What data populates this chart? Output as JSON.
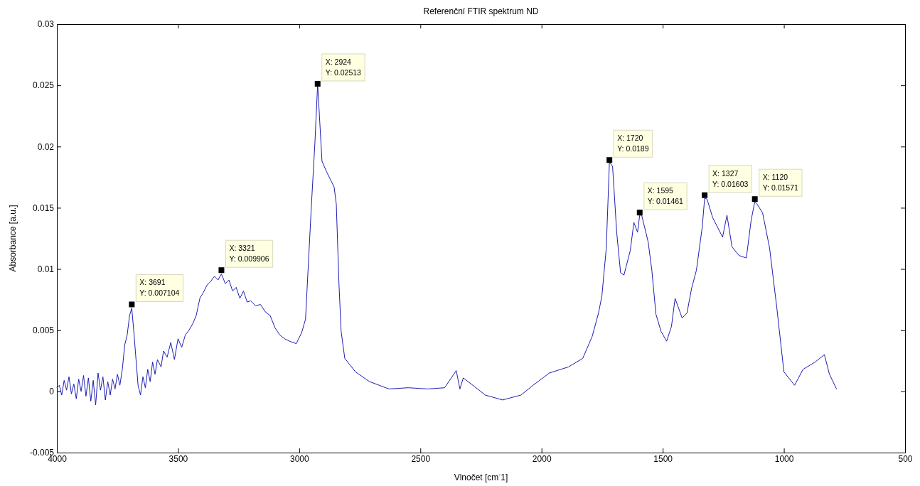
{
  "chart_data": {
    "type": "line",
    "title": "Referenční FTIR spektrum ND",
    "xlabel": "Vlnočet [cm$^{-}$1]",
    "ylabel": "Absorbance [a.u.]",
    "xlim": [
      4000,
      500
    ],
    "xticks": [
      4000,
      3500,
      3000,
      2500,
      2000,
      1500,
      1000,
      500
    ],
    "ylim": [
      -0.005,
      0.03
    ],
    "yticks": [
      -0.005,
      0,
      0.005,
      0.01,
      0.015,
      0.02,
      0.025,
      0.03
    ],
    "marker": "none",
    "line_style": "solid",
    "series": [
      {
        "color": "#1c1cb4",
        "x": [
          4000,
          3990,
          3980,
          3970,
          3960,
          3950,
          3940,
          3930,
          3920,
          3910,
          3900,
          3890,
          3880,
          3870,
          3860,
          3850,
          3840,
          3830,
          3820,
          3810,
          3800,
          3790,
          3780,
          3770,
          3760,
          3750,
          3740,
          3730,
          3720,
          3710,
          3700,
          3691,
          3683,
          3675,
          3665,
          3655,
          3645,
          3635,
          3625,
          3615,
          3605,
          3595,
          3585,
          3570,
          3560,
          3545,
          3530,
          3515,
          3500,
          3485,
          3470,
          3455,
          3440,
          3425,
          3410,
          3395,
          3380,
          3365,
          3350,
          3335,
          3321,
          3305,
          3290,
          3275,
          3260,
          3245,
          3230,
          3215,
          3200,
          3180,
          3160,
          3140,
          3120,
          3100,
          3080,
          3060,
          3040,
          3012,
          2990,
          2974,
          2950,
          2935,
          2924,
          2906,
          2886,
          2856,
          2847,
          2836,
          2827,
          2812,
          2768,
          2710,
          2630,
          2550,
          2470,
          2400,
          2352,
          2337,
          2323,
          2290,
          2232,
          2161,
          2085,
          2035,
          1968,
          1889,
          1830,
          1791,
          1765,
          1751,
          1733,
          1720,
          1707,
          1690,
          1674,
          1660,
          1634,
          1619,
          1604,
          1595,
          1587,
          1560,
          1545,
          1528,
          1507,
          1484,
          1464,
          1449,
          1420,
          1400,
          1381,
          1361,
          1337,
          1327,
          1317,
          1294,
          1253,
          1235,
          1214,
          1185,
          1155,
          1135,
          1120,
          1111,
          1088,
          1059,
          1029,
          1000,
          956,
          921,
          871,
          833,
          812,
          783
        ],
        "values": [
          0.0003,
          0.0005,
          -0.0003,
          0.0009,
          0.0001,
          0.0012,
          -0.0002,
          0.0006,
          -0.0006,
          0.001,
          0.0,
          0.0013,
          -0.0004,
          0.0011,
          -0.0008,
          0.0009,
          -0.0011,
          0.0015,
          0.0001,
          0.0012,
          -0.0007,
          0.0008,
          -0.0003,
          0.001,
          0.0002,
          0.0014,
          0.0005,
          0.0018,
          0.0038,
          0.0046,
          0.0062,
          0.0068,
          0.005,
          0.003,
          0.0005,
          -0.0003,
          0.0012,
          0.0003,
          0.0018,
          0.0008,
          0.0024,
          0.0014,
          0.0026,
          0.002,
          0.0033,
          0.0028,
          0.004,
          0.0026,
          0.0043,
          0.0036,
          0.0046,
          0.005,
          0.0055,
          0.0062,
          0.0076,
          0.0081,
          0.0087,
          0.009,
          0.0094,
          0.0091,
          0.0096,
          0.0088,
          0.0091,
          0.0082,
          0.0085,
          0.0076,
          0.0082,
          0.0073,
          0.0074,
          0.007,
          0.0071,
          0.0065,
          0.0062,
          0.0052,
          0.0046,
          0.0043,
          0.0041,
          0.0039,
          0.0048,
          0.0059,
          0.0151,
          0.0204,
          0.0251,
          0.0188,
          0.0179,
          0.0167,
          0.0153,
          0.0088,
          0.0049,
          0.0027,
          0.0016,
          0.0008,
          0.0002,
          0.0003,
          0.0002,
          0.0003,
          0.0017,
          0.0002,
          0.0011,
          0.0006,
          -0.0003,
          -0.0007,
          -0.0003,
          0.0005,
          0.0015,
          0.002,
          0.0027,
          0.0045,
          0.0064,
          0.0078,
          0.0117,
          0.0187,
          0.0184,
          0.013,
          0.0097,
          0.0095,
          0.0115,
          0.0138,
          0.013,
          0.0144,
          0.0144,
          0.0122,
          0.0099,
          0.0063,
          0.0049,
          0.0041,
          0.0053,
          0.0076,
          0.006,
          0.0064,
          0.0084,
          0.0099,
          0.0134,
          0.0158,
          0.0157,
          0.0142,
          0.0126,
          0.0144,
          0.0118,
          0.0111,
          0.0109,
          0.014,
          0.0155,
          0.0153,
          0.0146,
          0.0117,
          0.0068,
          0.0016,
          0.0005,
          0.0018,
          0.0024,
          0.003,
          0.0014,
          0.0002
        ]
      }
    ],
    "annotations": [
      {
        "text": "X: 3691\nY: 0.007104",
        "x": 3691,
        "y": 0.007104
      },
      {
        "text": "X: 3321\nY: 0.009906",
        "x": 3321,
        "y": 0.009906
      },
      {
        "text": "X: 2924\nY: 0.02513",
        "x": 2924,
        "y": 0.02513
      },
      {
        "text": "X: 1720\nY: 0.0189",
        "x": 1720,
        "y": 0.0189
      },
      {
        "text": "X: 1595\nY: 0.01461",
        "x": 1595,
        "y": 0.01461
      },
      {
        "text": "X: 1327\nY: 0.01603",
        "x": 1327,
        "y": 0.01603
      },
      {
        "text": "X: 1120\nY: 0.01571",
        "x": 1120,
        "y": 0.01571
      }
    ]
  }
}
